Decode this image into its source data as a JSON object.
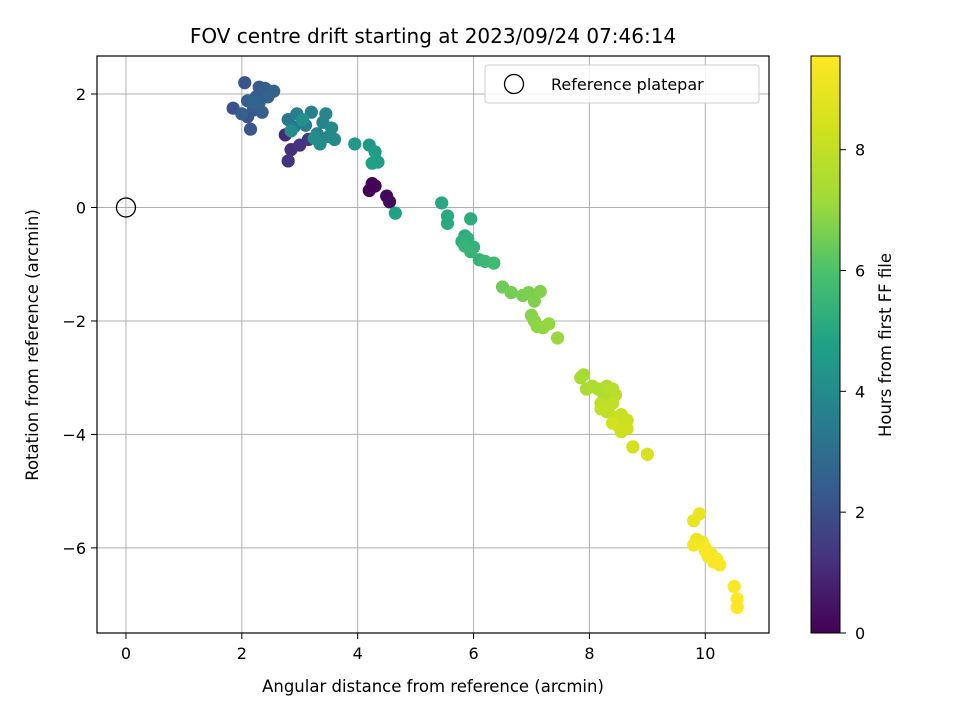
{
  "chart_data": {
    "type": "scatter",
    "title": "FOV centre drift starting at 2023/09/24 07:46:14",
    "xlabel": "Angular distance from reference (arcmin)",
    "ylabel": "Rotation from reference (arcmin)",
    "xlim": [
      -0.5,
      11.1
    ],
    "ylim": [
      -7.5,
      2.67
    ],
    "xticks": [
      0,
      2,
      4,
      6,
      8,
      10
    ],
    "yticks": [
      2,
      0,
      -2,
      -4,
      -6
    ],
    "grid": true,
    "legend": {
      "placement": "top-right",
      "entries": [
        {
          "label": "Reference platepar",
          "marker": "open-circle"
        }
      ]
    },
    "reference_point": {
      "label": "Reference platepar",
      "x": 0,
      "y": 0
    },
    "colorbar": {
      "label": "Hours from first FF file",
      "colormap": "viridis",
      "range": [
        0,
        9.55
      ],
      "ticks": [
        0,
        2,
        4,
        6,
        8
      ]
    },
    "series": [
      {
        "color_by": "hours",
        "points": [
          [
            4.25,
            0.42,
            0.0
          ],
          [
            4.2,
            0.3,
            0.05
          ],
          [
            4.5,
            0.2,
            0.15
          ],
          [
            4.55,
            0.1,
            0.25
          ],
          [
            4.3,
            0.38,
            0.1
          ],
          [
            2.75,
            1.28,
            1.0
          ],
          [
            2.85,
            1.02,
            1.15
          ],
          [
            3.0,
            1.1,
            1.2
          ],
          [
            2.8,
            0.82,
            1.25
          ],
          [
            3.15,
            1.2,
            1.35
          ],
          [
            1.85,
            1.75,
            2.1
          ],
          [
            2.05,
            2.2,
            2.2
          ],
          [
            2.1,
            1.6,
            2.2
          ],
          [
            2.15,
            1.38,
            2.25
          ],
          [
            2.2,
            1.72,
            2.3
          ],
          [
            2.25,
            1.95,
            2.35
          ],
          [
            2.3,
            2.12,
            2.4
          ],
          [
            2.4,
            2.1,
            2.45
          ],
          [
            2.55,
            2.05,
            2.55
          ],
          [
            2.35,
            1.68,
            2.5
          ],
          [
            2.1,
            1.88,
            2.5
          ],
          [
            2.0,
            1.65,
            2.5
          ],
          [
            2.3,
            1.85,
            2.6
          ],
          [
            2.45,
            1.95,
            2.6
          ],
          [
            2.2,
            1.85,
            2.7
          ],
          [
            2.8,
            1.55,
            3.3
          ],
          [
            2.9,
            1.42,
            3.4
          ],
          [
            2.95,
            1.65,
            3.5
          ],
          [
            3.1,
            1.45,
            3.55
          ],
          [
            3.2,
            1.68,
            3.6
          ],
          [
            3.3,
            1.3,
            3.7
          ],
          [
            3.4,
            1.5,
            3.75
          ],
          [
            3.45,
            1.65,
            3.8
          ],
          [
            3.5,
            1.25,
            3.85
          ],
          [
            3.55,
            1.4,
            3.9
          ],
          [
            3.6,
            1.2,
            3.95
          ],
          [
            3.35,
            1.12,
            4.0
          ],
          [
            3.25,
            1.22,
            4.05
          ],
          [
            2.85,
            1.35,
            4.1
          ],
          [
            3.05,
            1.55,
            4.2
          ],
          [
            3.95,
            1.12,
            4.45
          ],
          [
            4.2,
            1.1,
            4.5
          ],
          [
            4.3,
            0.98,
            4.6
          ],
          [
            4.35,
            0.8,
            4.7
          ],
          [
            4.25,
            0.78,
            4.75
          ],
          [
            4.65,
            -0.1,
            4.8
          ],
          [
            5.45,
            0.08,
            5.0
          ],
          [
            5.55,
            -0.15,
            5.05
          ],
          [
            5.55,
            -0.28,
            5.1
          ],
          [
            5.95,
            -0.2,
            5.15
          ],
          [
            5.85,
            -0.5,
            5.2
          ],
          [
            5.8,
            -0.6,
            5.25
          ],
          [
            5.9,
            -0.55,
            5.3
          ],
          [
            6.0,
            -0.7,
            5.35
          ],
          [
            6.1,
            -0.92,
            5.4
          ],
          [
            5.85,
            -0.68,
            5.45
          ],
          [
            5.95,
            -0.78,
            5.5
          ],
          [
            6.2,
            -0.95,
            5.6
          ],
          [
            6.35,
            -0.98,
            5.7
          ],
          [
            6.5,
            -1.4,
            6.5
          ],
          [
            6.65,
            -1.5,
            6.55
          ],
          [
            6.85,
            -1.55,
            6.6
          ],
          [
            6.95,
            -1.5,
            6.65
          ],
          [
            7.05,
            -1.65,
            6.7
          ],
          [
            7.15,
            -1.48,
            6.75
          ],
          [
            7.0,
            -1.9,
            6.8
          ],
          [
            7.05,
            -2.0,
            6.85
          ],
          [
            7.1,
            -2.1,
            6.9
          ],
          [
            7.2,
            -2.12,
            6.95
          ],
          [
            7.3,
            -2.05,
            7.0
          ],
          [
            7.45,
            -2.3,
            7.05
          ],
          [
            7.9,
            -2.95,
            7.3
          ],
          [
            7.85,
            -3.0,
            7.35
          ],
          [
            7.95,
            -3.2,
            7.4
          ],
          [
            8.05,
            -3.15,
            7.45
          ],
          [
            8.15,
            -3.2,
            7.5
          ],
          [
            8.25,
            -3.3,
            7.55
          ],
          [
            8.3,
            -3.15,
            7.6
          ],
          [
            8.35,
            -3.25,
            7.65
          ],
          [
            8.4,
            -3.2,
            7.7
          ],
          [
            8.45,
            -3.3,
            7.75
          ],
          [
            8.2,
            -3.45,
            7.8
          ],
          [
            8.3,
            -3.6,
            7.85
          ],
          [
            8.35,
            -3.5,
            7.9
          ],
          [
            8.4,
            -3.45,
            7.95
          ],
          [
            8.2,
            -3.55,
            8.0
          ],
          [
            8.45,
            -3.7,
            8.05
          ],
          [
            8.5,
            -3.85,
            8.1
          ],
          [
            8.55,
            -3.65,
            8.15
          ],
          [
            8.6,
            -3.8,
            8.2
          ],
          [
            8.65,
            -3.75,
            8.25
          ],
          [
            8.55,
            -3.95,
            8.3
          ],
          [
            8.65,
            -3.9,
            8.35
          ],
          [
            8.4,
            -3.8,
            8.4
          ],
          [
            8.75,
            -4.22,
            8.45
          ],
          [
            9.0,
            -4.35,
            8.5
          ],
          [
            9.8,
            -5.52,
            9.05
          ],
          [
            9.9,
            -5.4,
            9.1
          ],
          [
            9.85,
            -5.85,
            9.15
          ],
          [
            9.95,
            -5.9,
            9.2
          ],
          [
            9.8,
            -5.95,
            9.25
          ],
          [
            10.0,
            -6.05,
            9.3
          ],
          [
            10.05,
            -6.15,
            9.35
          ],
          [
            10.1,
            -6.1,
            9.4
          ],
          [
            10.15,
            -6.25,
            9.42
          ],
          [
            10.2,
            -6.2,
            9.45
          ],
          [
            10.25,
            -6.3,
            9.47
          ],
          [
            10.0,
            -6.0,
            9.48
          ],
          [
            10.5,
            -6.68,
            9.5
          ],
          [
            10.55,
            -6.9,
            9.52
          ],
          [
            10.55,
            -7.05,
            9.55
          ]
        ]
      }
    ]
  }
}
